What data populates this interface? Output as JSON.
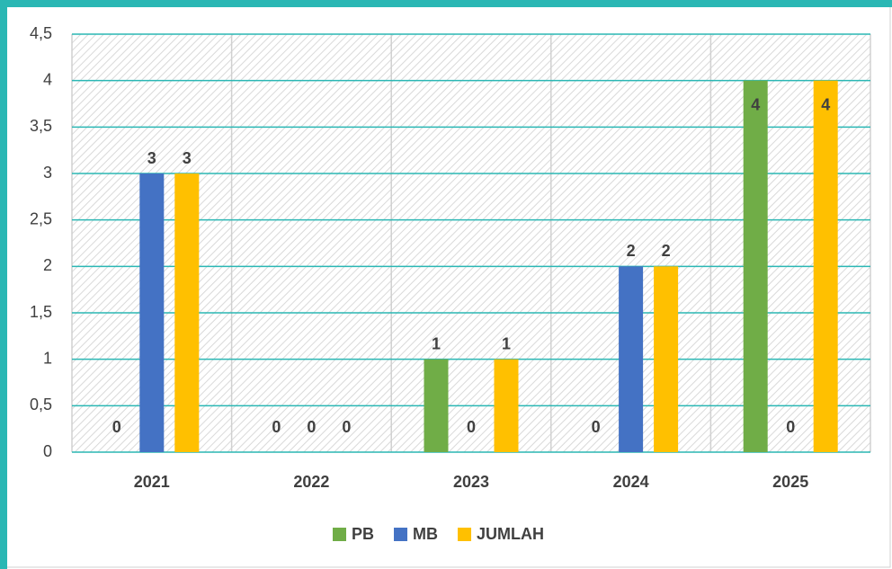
{
  "chart_data": {
    "type": "bar",
    "categories": [
      "2021",
      "2022",
      "2023",
      "2024",
      "2025"
    ],
    "series": [
      {
        "name": "PB",
        "color": "#70ad47",
        "values": [
          0,
          0,
          1,
          0,
          4
        ]
      },
      {
        "name": "MB",
        "color": "#4472c4",
        "values": [
          3,
          0,
          0,
          2,
          0
        ]
      },
      {
        "name": "JUMLAH",
        "color": "#ffc000",
        "values": [
          3,
          0,
          1,
          2,
          4
        ]
      }
    ],
    "ylim": [
      0,
      4.5
    ],
    "yticks": [
      0,
      {
        "value": 0.5,
        "label": "0,5"
      },
      1,
      {
        "value": 1.5,
        "label": "1,5"
      },
      2,
      {
        "value": 2.5,
        "label": "2,5"
      },
      3,
      {
        "value": 3.5,
        "label": "3,5"
      },
      4,
      {
        "value": 4.5,
        "label": "4,5"
      }
    ],
    "grid": true,
    "legend": "bottom"
  }
}
